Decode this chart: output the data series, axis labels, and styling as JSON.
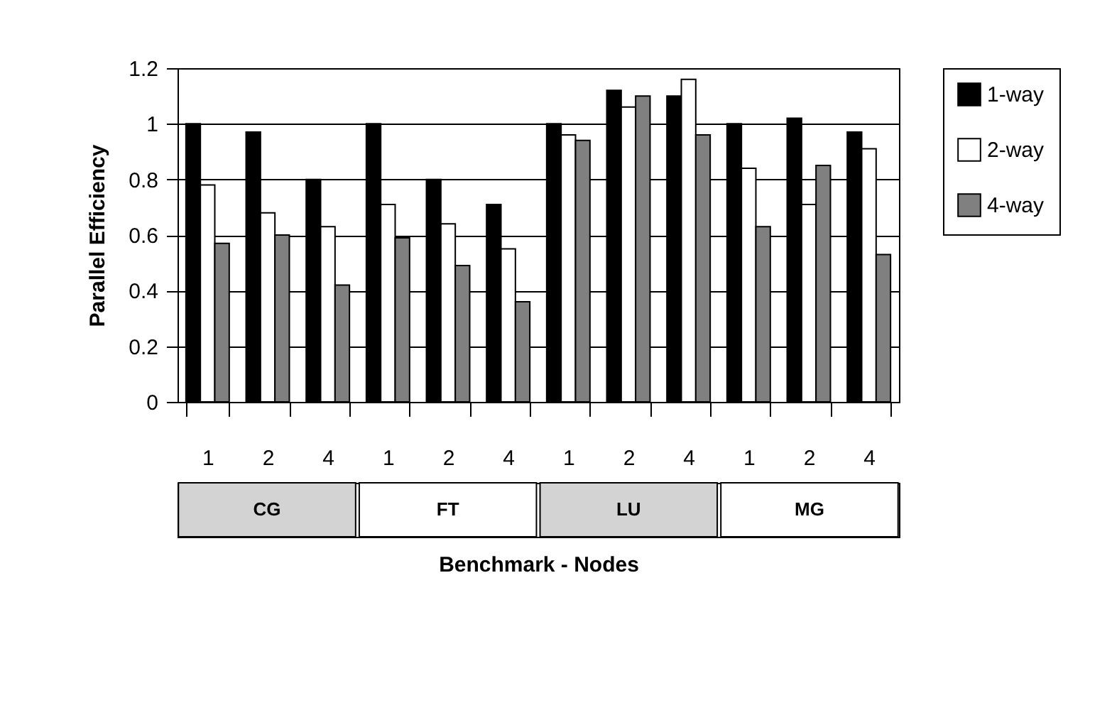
{
  "chart_data": {
    "type": "bar",
    "xlabel": "Benchmark - Nodes",
    "ylabel": "Parallel Efficiency",
    "categories": [
      "1",
      "2",
      "4",
      "1",
      "2",
      "4",
      "1",
      "2",
      "4",
      "1",
      "2",
      "4"
    ],
    "series": [
      {
        "name": "1-way",
        "color": "#000000",
        "values": [
          1.0,
          0.97,
          0.8,
          1.0,
          0.8,
          0.71,
          1.0,
          1.12,
          1.1,
          1.0,
          1.02,
          0.97
        ]
      },
      {
        "name": "2-way",
        "color": "#ffffff",
        "values": [
          0.78,
          0.68,
          0.63,
          0.71,
          0.64,
          0.55,
          0.96,
          1.06,
          1.16,
          0.84,
          0.71,
          0.91
        ]
      },
      {
        "name": "4-way",
        "color": "#808080",
        "values": [
          0.57,
          0.6,
          0.42,
          0.59,
          0.49,
          0.36,
          0.94,
          1.1,
          0.96,
          0.63,
          0.85,
          0.53
        ]
      }
    ],
    "annotations": [
      "CG",
      "FT",
      "LU",
      "MG"
    ],
    "ylim": [
      0,
      1.2
    ],
    "yticks": [
      0,
      0.2,
      0.4,
      0.6,
      0.8,
      1,
      1.2
    ],
    "grid": "y",
    "legend": "right"
  }
}
